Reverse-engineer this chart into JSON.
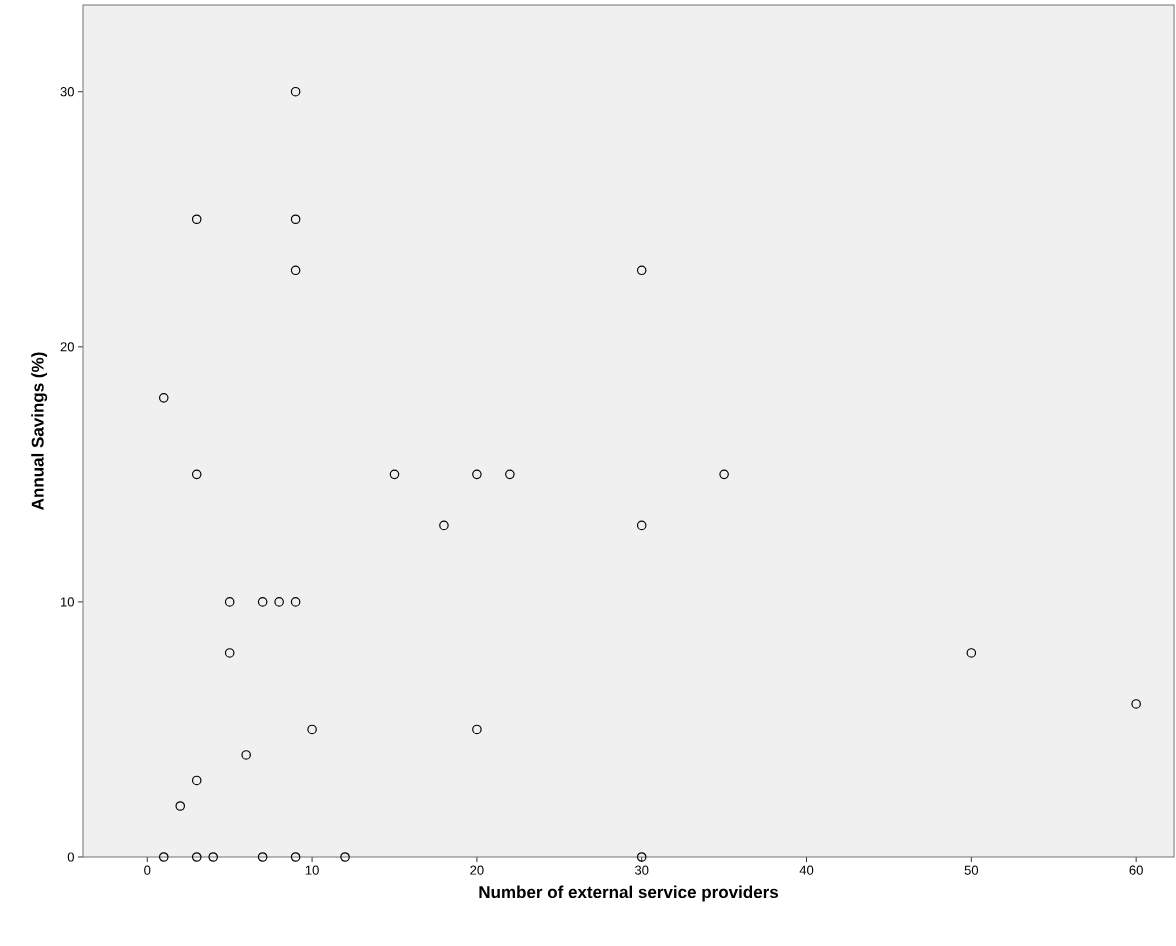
{
  "chart_data": {
    "type": "scatter",
    "xlabel": "Number of external service providers",
    "ylabel": "Annual Savings (%)",
    "x": [
      9,
      3,
      9,
      9,
      30,
      1,
      3,
      15,
      20,
      22,
      35,
      18,
      30,
      5,
      7,
      8,
      9,
      5,
      50,
      60,
      10,
      20,
      6,
      3,
      2,
      1,
      3,
      4,
      7,
      9,
      12,
      30
    ],
    "values": [
      30,
      25,
      25,
      23,
      23,
      18,
      15,
      15,
      15,
      15,
      15,
      13,
      13,
      10,
      10,
      10,
      10,
      8,
      8,
      6,
      5,
      5,
      4,
      3,
      2,
      0,
      0,
      0,
      0,
      0,
      0,
      0
    ],
    "color": "#000000",
    "marker": "circle",
    "xlim": [
      -3.9,
      62.3
    ],
    "ylim": [
      0,
      33.4
    ],
    "xticks": [
      0,
      10,
      20,
      30,
      40,
      50,
      60
    ],
    "yticks": [
      0,
      10,
      20,
      30
    ],
    "grid": false
  }
}
